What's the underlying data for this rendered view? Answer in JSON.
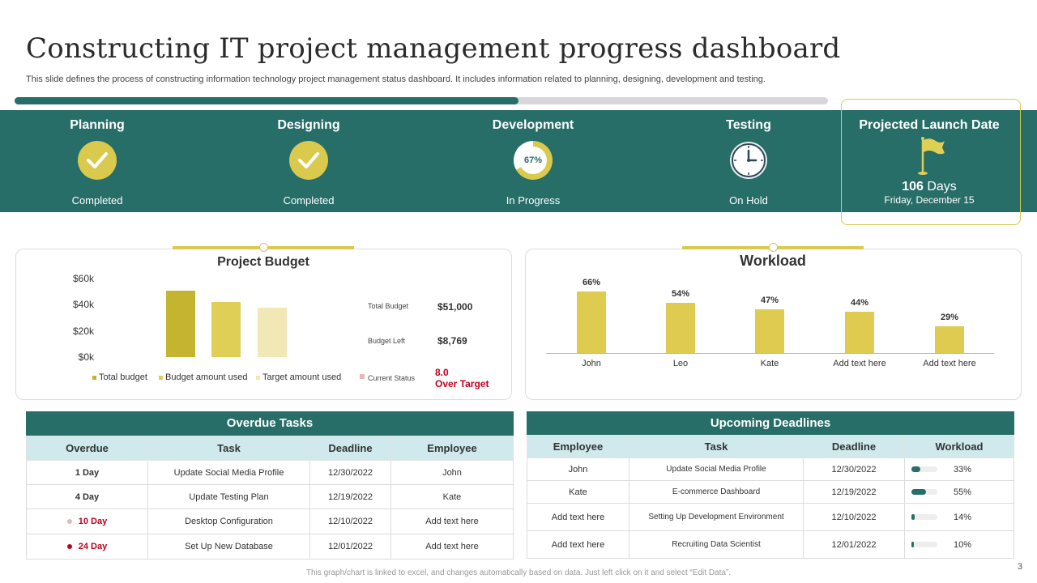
{
  "header": {
    "title": "Constructing IT project management progress dashboard",
    "subtitle": "This slide defines the process of constructing information technology project management status dashboard. It includes information related to planning, designing, development and testing."
  },
  "overall_progress": 0.62,
  "stages": [
    {
      "title": "Planning",
      "status": "Completed",
      "icon": "check-icon"
    },
    {
      "title": "Designing",
      "status": "Completed",
      "icon": "check-icon"
    },
    {
      "title": "Development",
      "status": "In Progress",
      "icon": "progress-donut",
      "percent_label": "67%",
      "percent": 67
    },
    {
      "title": "Testing",
      "status": "On Hold",
      "icon": "clock-icon"
    }
  ],
  "launch": {
    "title": "Projected Launch Date",
    "days_number": "106",
    "days_unit": "Days",
    "date": "Friday, December 15",
    "icon": "flag-icon"
  },
  "budget": {
    "title": "Project Budget",
    "total_label": "Total Budget",
    "total_value": "$51,000",
    "left_label": "Budget Left",
    "left_value": "$8,769",
    "status_label": "Current Status",
    "status_value": "8.0",
    "status_note": "Over Target"
  },
  "workload": {
    "title": "Workload"
  },
  "colors": {
    "teal": "#276d68",
    "gold": "#d9c94d",
    "bar_dark": "#c5b42f",
    "bar_mid": "#dfcf57",
    "bar_light": "#f1e8b6",
    "red": "#c0001d"
  },
  "chart_data": [
    {
      "type": "bar",
      "title": "Project Budget",
      "categories": [
        "Total budget",
        "Budget amount used",
        "Target amount used"
      ],
      "values": [
        51000,
        42000,
        38000
      ],
      "yticks": [
        "$60k",
        "$40k",
        "$20k",
        "$0k"
      ],
      "ylim": [
        0,
        60000
      ],
      "legend": [
        "Total budget",
        "Budget amount used",
        "Target amount used"
      ],
      "legend_position": "bottom"
    },
    {
      "type": "bar",
      "title": "Workload",
      "categories": [
        "John",
        "Leo",
        "Kate",
        "Add text here",
        "Add text here"
      ],
      "values": [
        66,
        54,
        47,
        44,
        29
      ],
      "value_labels": [
        "66%",
        "54%",
        "47%",
        "44%",
        "29%"
      ],
      "ylim": [
        0,
        100
      ]
    }
  ],
  "overdue": {
    "title": "Overdue Tasks",
    "columns": [
      "Overdue",
      "Task",
      "Deadline",
      "Employee"
    ],
    "rows": [
      {
        "overdue": "1 Day",
        "task": "Update Social Media Profile",
        "deadline": "12/30/2022",
        "employee": "John",
        "flag": "none"
      },
      {
        "overdue": "4 Day",
        "task": "Update Testing Plan",
        "deadline": "12/19/2022",
        "employee": "Kate",
        "flag": "none"
      },
      {
        "overdue": "10 Day",
        "task": "Desktop Configuration",
        "deadline": "12/10/2022",
        "employee": "Add text here",
        "flag": "light"
      },
      {
        "overdue": "24 Day",
        "task": "Set Up New Database",
        "deadline": "12/01/2022",
        "employee": "Add text here",
        "flag": "dark"
      }
    ]
  },
  "deadlines": {
    "title": "Upcoming  Deadlines",
    "columns": [
      "Employee",
      "Task",
      "Deadline",
      "Workload"
    ],
    "rows": [
      {
        "employee": "John",
        "task": "Update Social Media Profile",
        "deadline": "12/30/2022",
        "workload": "33%",
        "level": 0.33
      },
      {
        "employee": "Kate",
        "task": "E-commerce Dashboard",
        "deadline": "12/19/2022",
        "workload": "55%",
        "level": 0.55
      },
      {
        "employee": "Add text here",
        "task": "Setting Up Development Environment",
        "deadline": "12/10/2022",
        "workload": "14%",
        "level": 0.14
      },
      {
        "employee": "Add text here",
        "task": "Recruiting Data Scientist",
        "deadline": "12/01/2022",
        "workload": "10%",
        "level": 0.1
      }
    ]
  },
  "footer": {
    "note": "This graph/chart is linked to excel, and changes automatically based on data. Just left click on it and select “Edit Data”.",
    "page": "3"
  }
}
